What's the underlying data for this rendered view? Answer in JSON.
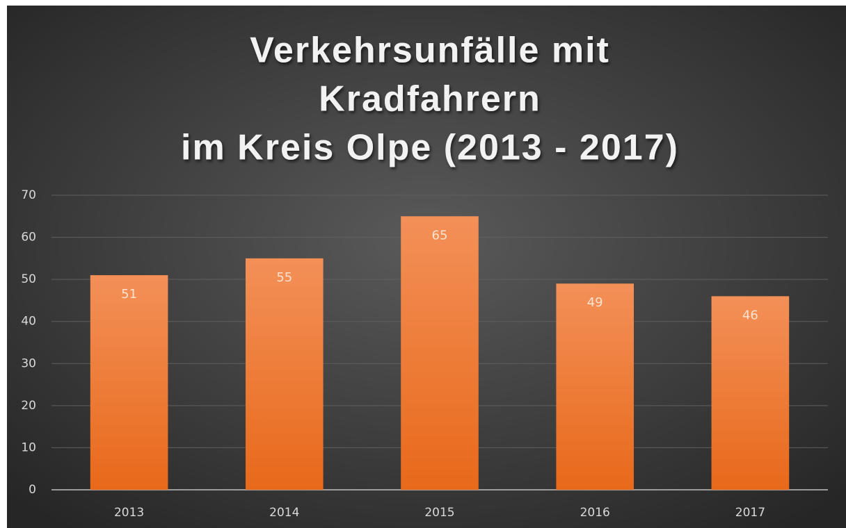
{
  "chart_data": {
    "type": "bar",
    "title": [
      "Verkehrsunfälle mit",
      "Kradfahrern",
      "im Kreis Olpe (2013 - 2017)"
    ],
    "categories": [
      "2013",
      "2014",
      "2015",
      "2016",
      "2017"
    ],
    "values": [
      51,
      55,
      65,
      49,
      46
    ],
    "color": "#f07f30",
    "ylim": [
      0,
      70
    ],
    "yticks": [
      0,
      10,
      20,
      30,
      40,
      50,
      60,
      70
    ],
    "grid": true
  }
}
